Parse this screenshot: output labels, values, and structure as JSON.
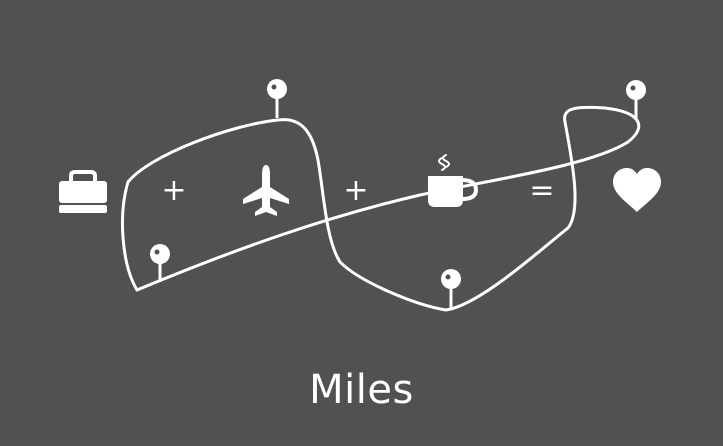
{
  "equation": {
    "operator_plus_1": "+",
    "operator_plus_2": "+",
    "operator_equals": "="
  },
  "caption": "Miles",
  "icons": [
    "briefcase-icon",
    "airplane-icon",
    "coffee-cup-icon",
    "heart-icon",
    "map-pin-icon"
  ],
  "colors": {
    "background": "#515151",
    "foreground": "#ffffff"
  }
}
